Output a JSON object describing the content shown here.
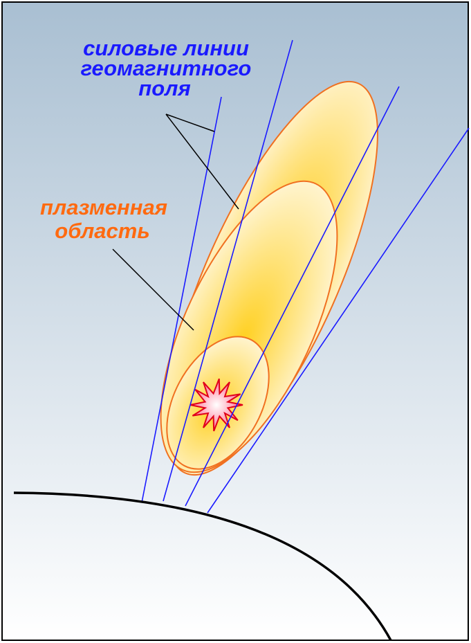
{
  "field_label": {
    "lines": [
      "силовые линии",
      "геомагнитного",
      "поля"
    ]
  },
  "plasma_label": {
    "lines": [
      "плазменная",
      "область"
    ]
  }
}
